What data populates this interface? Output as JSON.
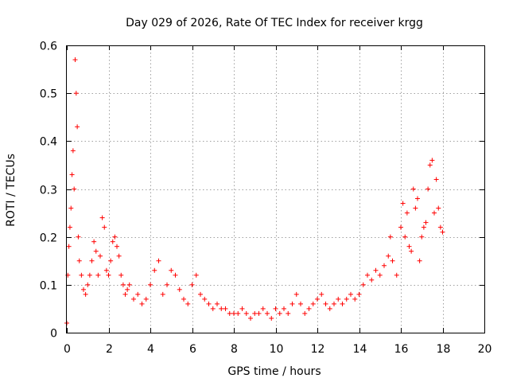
{
  "chart_data": {
    "type": "scatter",
    "title": "Day 029 of 2026, Rate Of TEC Index for receiver krgg",
    "xlabel": "GPS time / hours",
    "ylabel": "ROTI / TECUs",
    "xlim": [
      0,
      20
    ],
    "ylim": [
      0,
      0.6
    ],
    "xticks": [
      "0",
      "2",
      "4",
      "6",
      "8",
      "10",
      "12",
      "14",
      "16",
      "18",
      "20"
    ],
    "yticks": [
      "0",
      "0.1",
      "0.2",
      "0.3",
      "0.4",
      "0.5",
      "0.6"
    ],
    "grid": true,
    "marker": "+",
    "color": "#ff0000",
    "series": [
      {
        "x": [
          0.0,
          0.05,
          0.1,
          0.15,
          0.2,
          0.25,
          0.3,
          0.35,
          0.4,
          0.45,
          0.5,
          0.55,
          0.6,
          0.7,
          0.8,
          0.9,
          1.0,
          1.1,
          1.2,
          1.3,
          1.4,
          1.5,
          1.6,
          1.7,
          1.8,
          1.9,
          2.0,
          2.1,
          2.2,
          2.3,
          2.4,
          2.5,
          2.6,
          2.7,
          2.8,
          2.9,
          3.0,
          3.2,
          3.4,
          3.6,
          3.8,
          4.0,
          4.2,
          4.4,
          4.6,
          4.8,
          5.0,
          5.2,
          5.4,
          5.6,
          5.8,
          6.0,
          6.2,
          6.4,
          6.6,
          6.8,
          7.0,
          7.2,
          7.4,
          7.6,
          7.8,
          8.0,
          8.2,
          8.4,
          8.6,
          8.8,
          9.0,
          9.2,
          9.4,
          9.6,
          9.8,
          10.0,
          10.2,
          10.4,
          10.6,
          10.8,
          11.0,
          11.2,
          11.4,
          11.6,
          11.8,
          12.0,
          12.2,
          12.4,
          12.6,
          12.8,
          13.0,
          13.2,
          13.4,
          13.6,
          13.8,
          14.0,
          14.2,
          14.4,
          14.6,
          14.8,
          15.0,
          15.2,
          15.4,
          15.5,
          15.6,
          15.8,
          16.0,
          16.1,
          16.2,
          16.3,
          16.4,
          16.5,
          16.6,
          16.7,
          16.8,
          16.9,
          17.0,
          17.1,
          17.2,
          17.3,
          17.4,
          17.5,
          17.6,
          17.7,
          17.8,
          17.9,
          18.0
        ],
        "y": [
          0.02,
          0.12,
          0.18,
          0.22,
          0.26,
          0.33,
          0.38,
          0.3,
          0.57,
          0.5,
          0.43,
          0.2,
          0.15,
          0.12,
          0.09,
          0.08,
          0.1,
          0.12,
          0.15,
          0.19,
          0.17,
          0.12,
          0.16,
          0.24,
          0.22,
          0.13,
          0.12,
          0.15,
          0.19,
          0.2,
          0.18,
          0.16,
          0.12,
          0.1,
          0.08,
          0.09,
          0.1,
          0.07,
          0.08,
          0.06,
          0.07,
          0.1,
          0.13,
          0.15,
          0.08,
          0.1,
          0.13,
          0.12,
          0.09,
          0.07,
          0.06,
          0.1,
          0.12,
          0.08,
          0.07,
          0.06,
          0.05,
          0.06,
          0.05,
          0.05,
          0.04,
          0.04,
          0.04,
          0.05,
          0.04,
          0.03,
          0.04,
          0.04,
          0.05,
          0.04,
          0.03,
          0.05,
          0.04,
          0.05,
          0.04,
          0.06,
          0.08,
          0.06,
          0.04,
          0.05,
          0.06,
          0.07,
          0.08,
          0.06,
          0.05,
          0.06,
          0.07,
          0.06,
          0.07,
          0.08,
          0.07,
          0.08,
          0.1,
          0.12,
          0.11,
          0.13,
          0.12,
          0.14,
          0.16,
          0.2,
          0.15,
          0.12,
          0.22,
          0.27,
          0.2,
          0.25,
          0.18,
          0.17,
          0.3,
          0.26,
          0.28,
          0.15,
          0.2,
          0.22,
          0.23,
          0.3,
          0.35,
          0.36,
          0.25,
          0.32,
          0.26,
          0.22,
          0.21
        ]
      }
    ]
  }
}
